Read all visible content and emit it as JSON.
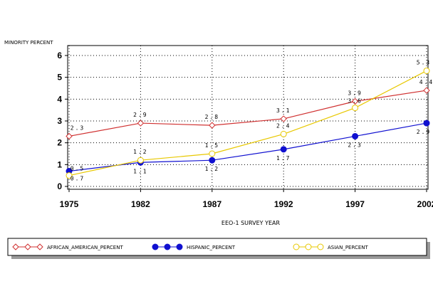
{
  "chart_data": {
    "type": "line",
    "title": "",
    "ylabel": "MINORITY PERCENT",
    "xlabel": "EEO-1 SURVEY YEAR",
    "x": [
      1975,
      1982,
      1987,
      1992,
      1997,
      2002
    ],
    "x_tick_labels": [
      "1975",
      "1982",
      "1987",
      "1992",
      "1997",
      "2002"
    ],
    "y_ticks": [
      0,
      1,
      2,
      3,
      4,
      5,
      6
    ],
    "y_tick_labels": [
      "0",
      "1",
      "2",
      "3",
      "4",
      "5",
      "6"
    ],
    "ylim": [
      0,
      6.3
    ],
    "grid": "dotted",
    "legend_position": "bottom",
    "series": [
      {
        "name": "AFRICAN_AMERICAN_PERCENT",
        "values": [
          2.3,
          2.9,
          2.8,
          3.1,
          3.9,
          4.4
        ],
        "labels": [
          "2.3",
          "2.9",
          "2.8",
          "3.1",
          "3.9",
          "4.4"
        ],
        "color": "#d03030",
        "marker": "diamond-open"
      },
      {
        "name": "HISPANIC_PERCENT",
        "values": [
          0.7,
          1.1,
          1.2,
          1.7,
          2.3,
          2.9
        ],
        "labels": [
          "0.7",
          "1.1",
          "1.2",
          "1.7",
          "2.3",
          "2.9"
        ],
        "color": "#1010d0",
        "marker": "circle-filled"
      },
      {
        "name": "ASIAN_PERCENT",
        "values": [
          0.5,
          1.2,
          1.5,
          2.4,
          3.6,
          5.3
        ],
        "labels": [
          "0.5",
          "1.2",
          "1.5",
          "2.4",
          "3.6",
          "5.3"
        ],
        "color": "#e8c800",
        "marker": "circle-open"
      }
    ]
  }
}
